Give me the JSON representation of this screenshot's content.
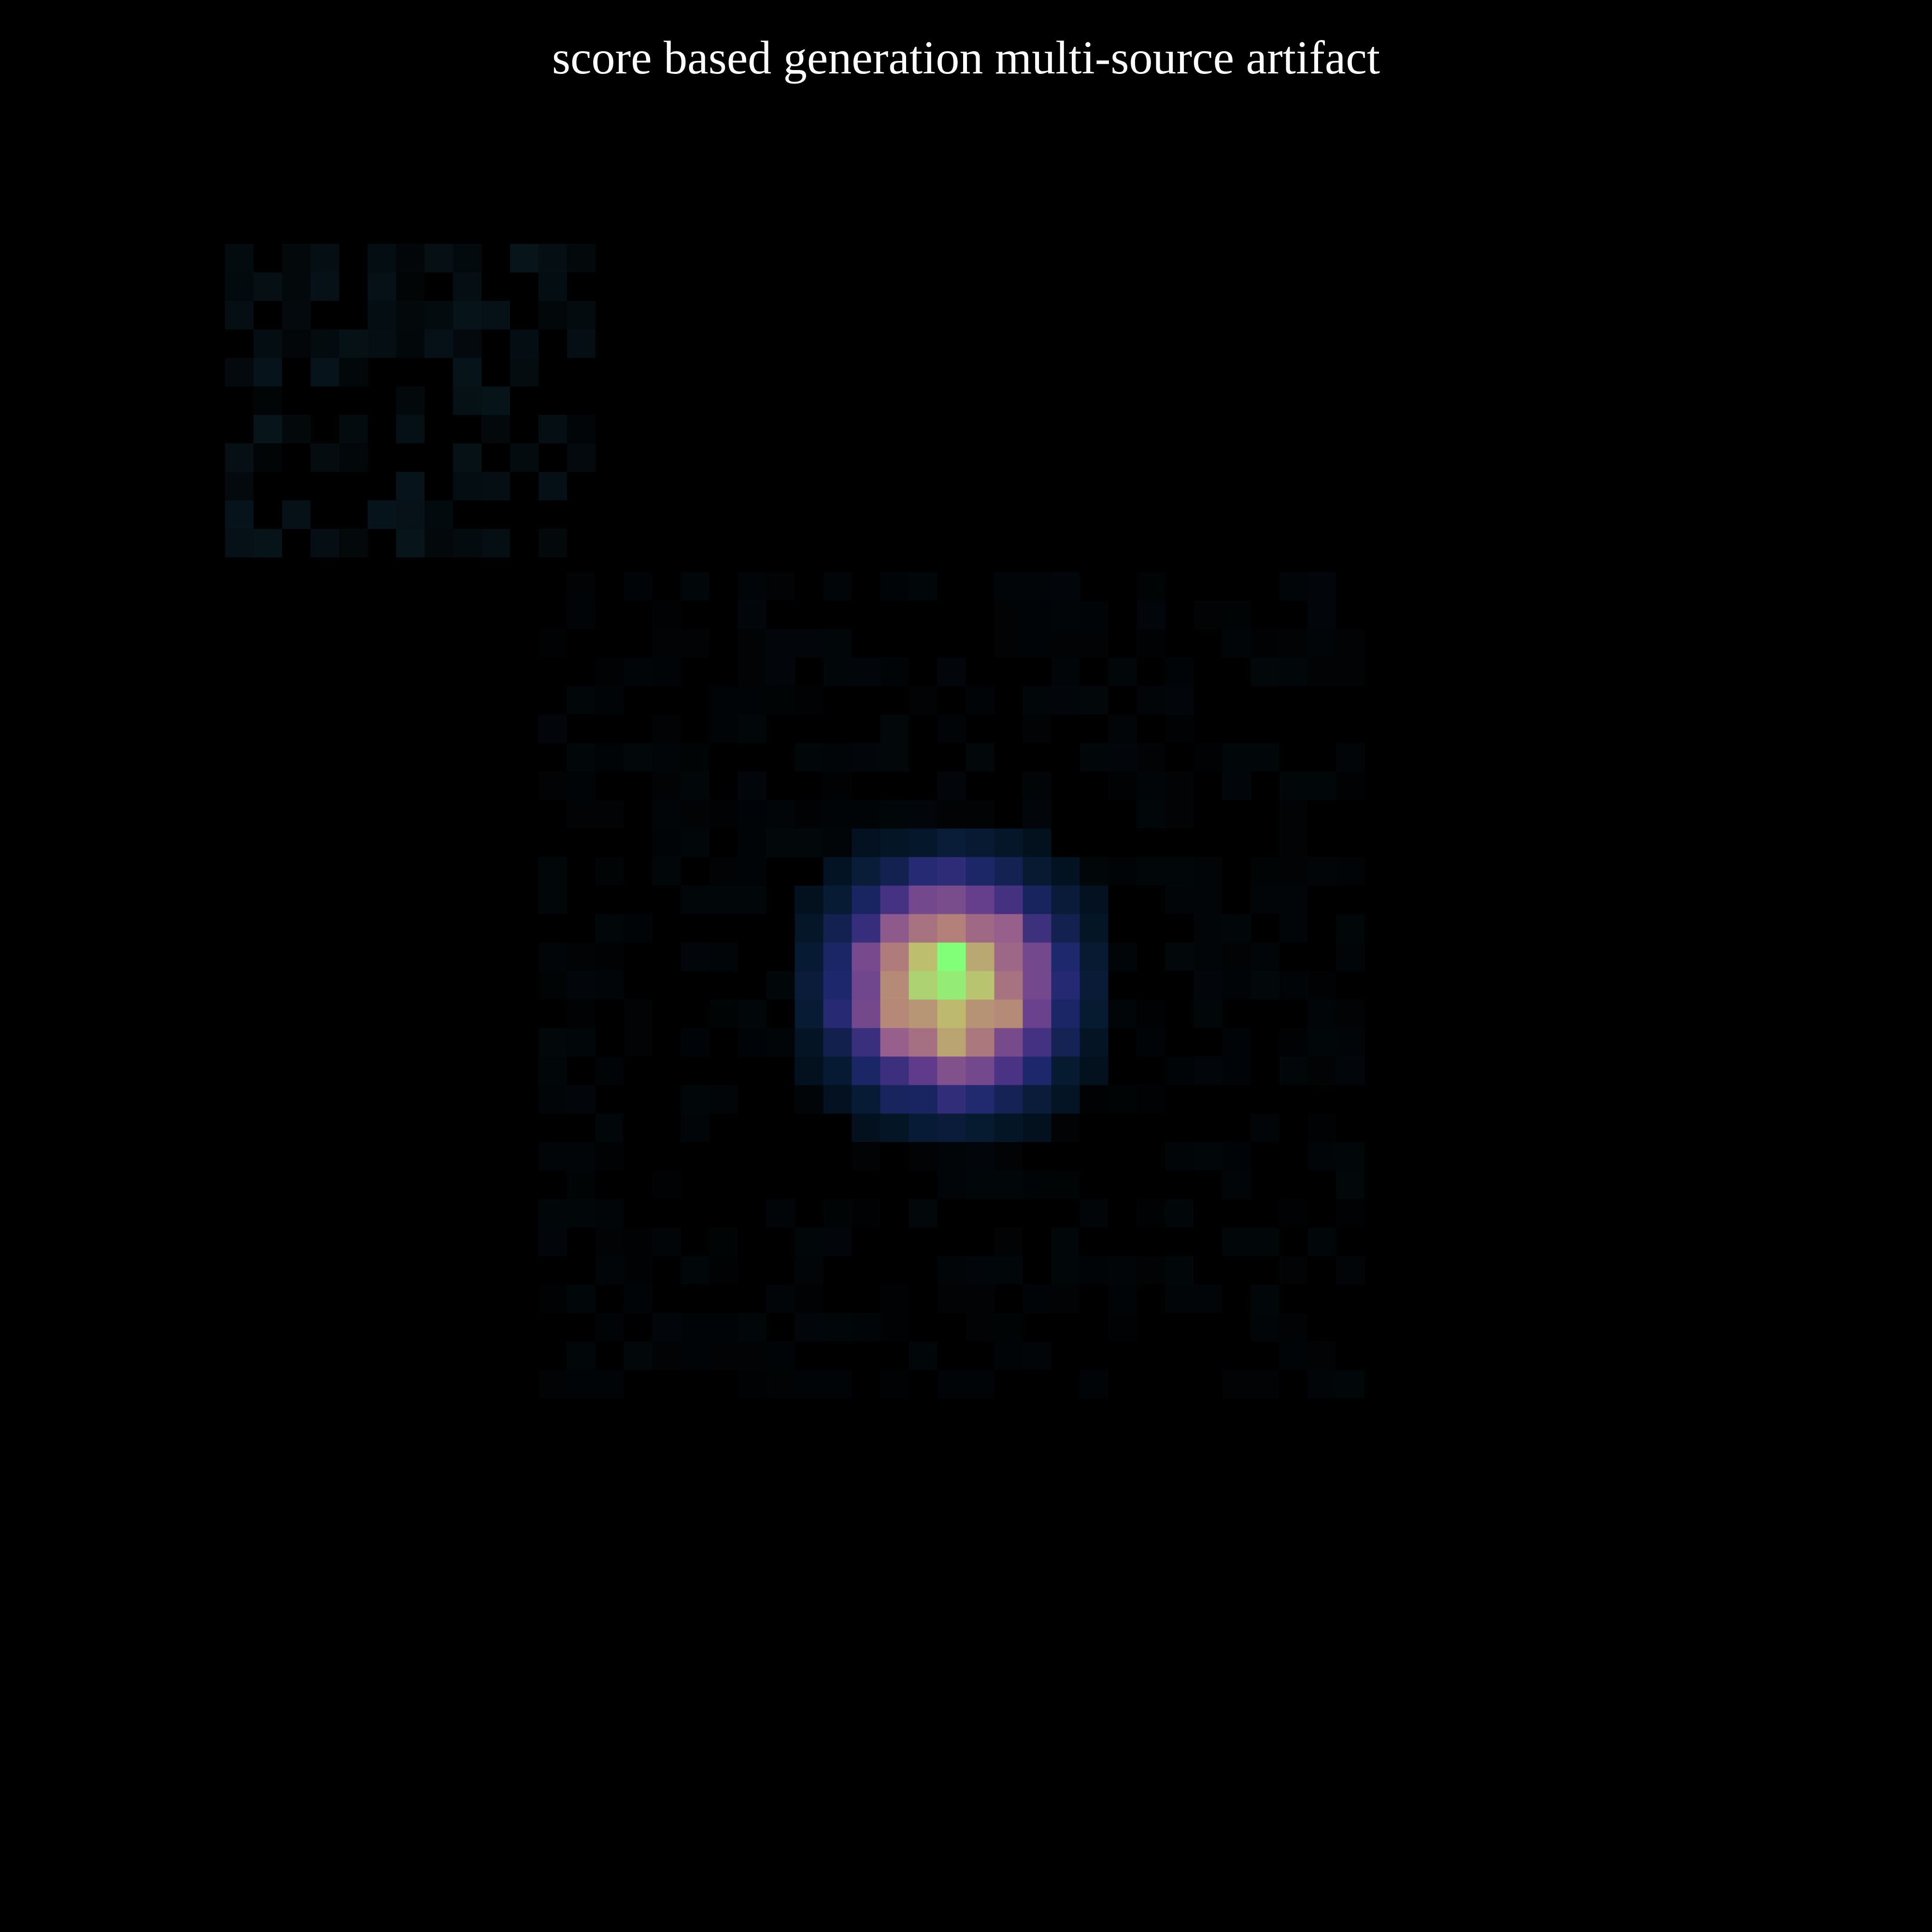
{
  "title": "score based generation multi-source artifact",
  "colors": {
    "background": "#000000",
    "title_text": "#ffffff"
  }
}
